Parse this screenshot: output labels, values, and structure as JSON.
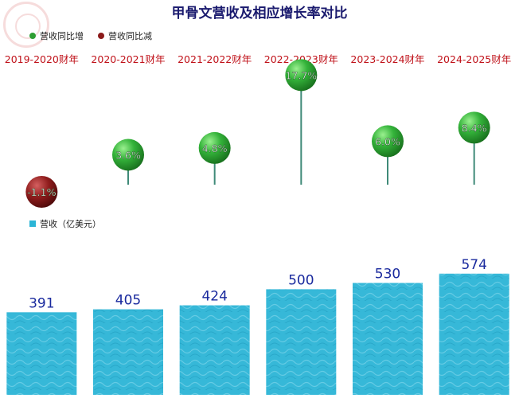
{
  "chart_data": {
    "type": "bar+lollipop",
    "title": "甲骨文营收及相应增长率对比",
    "categories": [
      "2019-2020财年",
      "2020-2021财年",
      "2021-2022财年",
      "2022-2023财年",
      "2023-2024财年",
      "2024-2025财年"
    ],
    "growth": {
      "legend": [
        {
          "label": "营收同比增",
          "color": "#2e9e33"
        },
        {
          "label": "营收同比减",
          "color": "#8b1a1a"
        }
      ],
      "values": [
        -1.1,
        3.6,
        4.8,
        17.7,
        6.0,
        8.4
      ],
      "value_labels": [
        "-1.1%",
        "3.6%",
        "4.8%",
        "17.7%",
        "6.0%",
        "8.4%"
      ]
    },
    "revenue": {
      "legend_label": "营收（亿美元）",
      "color": "#2bb5d6",
      "values": [
        391,
        405,
        424,
        500,
        530,
        574
      ]
    }
  }
}
